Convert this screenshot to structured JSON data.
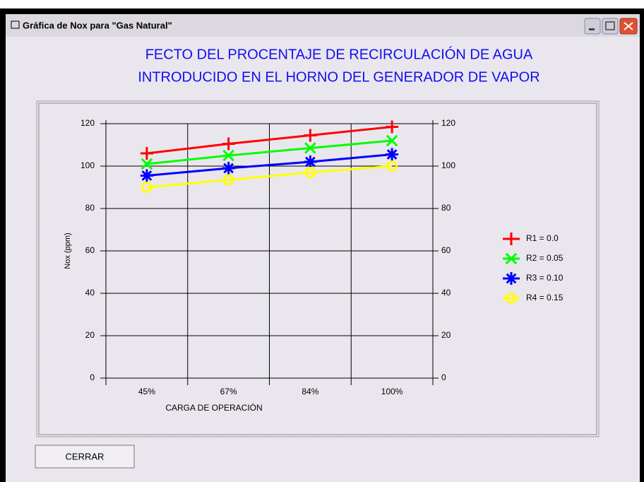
{
  "window": {
    "title": "Gráfica de Nox para \"Gas Natural\"",
    "button": "CERRAR"
  },
  "chart_data": {
    "type": "line",
    "title": [
      "FECTO DEL PROCENTAJE DE RECIRCULACIÓN DE AGUA",
      "INTRODUCIDO EN EL HORNO DEL GENERADOR DE VAPOR"
    ],
    "x_label": "CARGA DE OPERACIÓN",
    "y_label": "Nox (ppm)",
    "categories": [
      "45%",
      "67%",
      "84%",
      "100%"
    ],
    "series": [
      {
        "name": "R1 = 0.0",
        "color": "#ff0000",
        "marker": "plus",
        "values": [
          106,
          110.5,
          114.5,
          118.5
        ]
      },
      {
        "name": "R2 = 0.05",
        "color": "#00ff00",
        "marker": "x",
        "values": [
          101,
          105,
          108.5,
          112
        ]
      },
      {
        "name": "R3 = 0.10",
        "color": "#0000ff",
        "marker": "star",
        "values": [
          95.5,
          99,
          102,
          105.5
        ]
      },
      {
        "name": "R4 = 0.15",
        "color": "#ffff00",
        "marker": "circle",
        "values": [
          90,
          93.5,
          97,
          100
        ]
      }
    ],
    "ylim": [
      0,
      120
    ],
    "yticks": [
      0,
      20,
      40,
      60,
      80,
      100,
      120
    ],
    "grid": true,
    "right_axis": true,
    "legend": "right"
  }
}
